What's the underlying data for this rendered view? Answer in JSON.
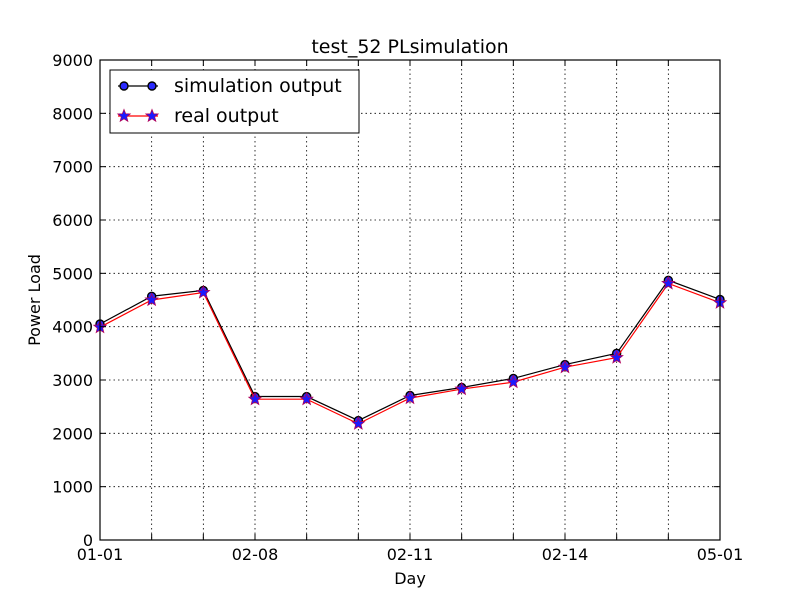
{
  "chart_data": {
    "type": "line",
    "title": "test_52 PLsimulation",
    "xlabel": "Day",
    "ylabel": "Power Load",
    "xticks": [
      "01-01",
      "02-08",
      "02-11",
      "02-14",
      "05-01"
    ],
    "yticks": [
      "0",
      "1000",
      "2000",
      "3000",
      "4000",
      "5000",
      "6000",
      "7000",
      "8000",
      "9000"
    ],
    "ylim": [
      0,
      9000
    ],
    "grid": true,
    "legend_position": "top-left",
    "series": [
      {
        "name": "simulation output",
        "color": "#000000",
        "marker": "circle",
        "marker_face": "#2a2aff",
        "values": [
          4050,
          4570,
          4680,
          2690,
          2690,
          2240,
          2710,
          2860,
          3030,
          3290,
          3500,
          4870,
          4510
        ]
      },
      {
        "name": "real output",
        "color": "#ff0000",
        "marker": "star",
        "marker_face": "#1a1aff",
        "values": [
          3990,
          4500,
          4640,
          2640,
          2640,
          2180,
          2660,
          2830,
          2960,
          3240,
          3420,
          4810,
          4450
        ]
      }
    ]
  }
}
